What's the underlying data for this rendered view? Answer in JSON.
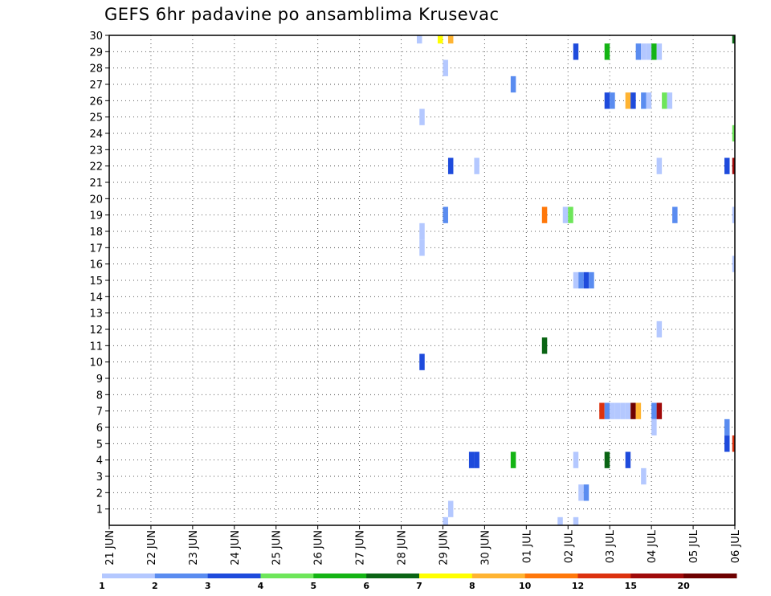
{
  "chart_data": {
    "type": "heatmap",
    "title": "GEFS 6hr padavine po ansamblima Krusevac",
    "x_tick_labels": [
      "21 JUN",
      "22 JUN",
      "23 JUN",
      "24 JUN",
      "25 JUN",
      "26 JUN",
      "27 JUN",
      "28 JUN",
      "29 JUN",
      "30 JUN",
      "01 JUL",
      "02 JUL",
      "03 JUL",
      "04 JUL",
      "05 JUL",
      "06 JUL"
    ],
    "y_tick_labels": [
      "1",
      "2",
      "3",
      "4",
      "5",
      "6",
      "7",
      "8",
      "9",
      "10",
      "11",
      "12",
      "13",
      "14",
      "15",
      "16",
      "17",
      "18",
      "19",
      "20",
      "21",
      "22",
      "23",
      "24",
      "25",
      "26",
      "27",
      "28",
      "29",
      "30"
    ],
    "ylim": [
      0,
      30
    ],
    "grid": "dotted",
    "legend_placement": "bottom",
    "legend_labels": [
      "1",
      "2",
      "3",
      "4",
      "5",
      "6",
      "7",
      "8",
      "10",
      "12",
      "15",
      "20"
    ],
    "colors": [
      "#b4c8ff",
      "#5a8cf0",
      "#1e4bdc",
      "#6ee65a",
      "#14b414",
      "#0a6414",
      "#ffff00",
      "#ffb432",
      "#ff780a",
      "#dc320f",
      "#a00a0a",
      "#6e0000"
    ],
    "cells": [
      {
        "member": 30,
        "t": 119,
        "c": 0
      },
      {
        "member": 30,
        "t": 127,
        "c": 6
      },
      {
        "member": 30,
        "t": 131,
        "c": 7
      },
      {
        "member": 30,
        "t": 240,
        "c": 5
      },
      {
        "member": 29,
        "t": 179,
        "c": 2
      },
      {
        "member": 29,
        "t": 191,
        "c": 4
      },
      {
        "member": 29,
        "t": 203,
        "c": 1
      },
      {
        "member": 29,
        "t": 205,
        "c": 0
      },
      {
        "member": 29,
        "t": 207,
        "c": 0
      },
      {
        "member": 29,
        "t": 209,
        "c": 4
      },
      {
        "member": 29,
        "t": 211,
        "c": 0
      },
      {
        "member": 28,
        "t": 129,
        "c": 0
      },
      {
        "member": 27,
        "t": 155,
        "c": 1
      },
      {
        "member": 26,
        "t": 191,
        "c": 2
      },
      {
        "member": 26,
        "t": 193,
        "c": 1
      },
      {
        "member": 26,
        "t": 199,
        "c": 7
      },
      {
        "member": 26,
        "t": 201,
        "c": 2
      },
      {
        "member": 26,
        "t": 205,
        "c": 1
      },
      {
        "member": 26,
        "t": 207,
        "c": 0
      },
      {
        "member": 26,
        "t": 213,
        "c": 3
      },
      {
        "member": 26,
        "t": 215,
        "c": 0
      },
      {
        "member": 25,
        "t": 120,
        "c": 0
      },
      {
        "member": 24,
        "t": 240,
        "c": 3
      },
      {
        "member": 22,
        "t": 131,
        "c": 2
      },
      {
        "member": 22,
        "t": 141,
        "c": 0
      },
      {
        "member": 22,
        "t": 211,
        "c": 0
      },
      {
        "member": 22,
        "t": 237,
        "c": 2
      },
      {
        "member": 22,
        "t": 240,
        "c": 10
      },
      {
        "member": 19,
        "t": 129,
        "c": 1
      },
      {
        "member": 19,
        "t": 167,
        "c": 8
      },
      {
        "member": 19,
        "t": 175,
        "c": 0
      },
      {
        "member": 19,
        "t": 177,
        "c": 3
      },
      {
        "member": 19,
        "t": 217,
        "c": 1
      },
      {
        "member": 19,
        "t": 240,
        "c": 0
      },
      {
        "member": 18,
        "t": 120,
        "c": 0
      },
      {
        "member": 17,
        "t": 120,
        "c": 0
      },
      {
        "member": 16,
        "t": 240,
        "c": 0
      },
      {
        "member": 15,
        "t": 179,
        "c": 0
      },
      {
        "member": 15,
        "t": 181,
        "c": 1
      },
      {
        "member": 15,
        "t": 183,
        "c": 2
      },
      {
        "member": 15,
        "t": 185,
        "c": 1
      },
      {
        "member": 12,
        "t": 211,
        "c": 0
      },
      {
        "member": 11,
        "t": 167,
        "c": 5
      },
      {
        "member": 10,
        "t": 120,
        "c": 2
      },
      {
        "member": 7,
        "t": 189,
        "c": 9
      },
      {
        "member": 7,
        "t": 191,
        "c": 1
      },
      {
        "member": 7,
        "t": 193,
        "c": 0
      },
      {
        "member": 7,
        "t": 195,
        "c": 0
      },
      {
        "member": 7,
        "t": 197,
        "c": 0
      },
      {
        "member": 7,
        "t": 199,
        "c": 0
      },
      {
        "member": 7,
        "t": 201,
        "c": 11
      },
      {
        "member": 7,
        "t": 203,
        "c": 7
      },
      {
        "member": 7,
        "t": 209,
        "c": 1
      },
      {
        "member": 7,
        "t": 211,
        "c": 10
      },
      {
        "member": 6,
        "t": 209,
        "c": 0
      },
      {
        "member": 6,
        "t": 237,
        "c": 1
      },
      {
        "member": 5,
        "t": 237,
        "c": 2
      },
      {
        "member": 5,
        "t": 240,
        "c": 9
      },
      {
        "member": 4,
        "t": 139,
        "c": 2
      },
      {
        "member": 4,
        "t": 141,
        "c": 2
      },
      {
        "member": 4,
        "t": 155,
        "c": 4
      },
      {
        "member": 4,
        "t": 179,
        "c": 0
      },
      {
        "member": 4,
        "t": 191,
        "c": 5
      },
      {
        "member": 4,
        "t": 199,
        "c": 2
      },
      {
        "member": 3,
        "t": 205,
        "c": 0
      },
      {
        "member": 2,
        "t": 181,
        "c": 0
      },
      {
        "member": 2,
        "t": 183,
        "c": 1
      },
      {
        "member": 1,
        "t": 131,
        "c": 0
      },
      {
        "member": 0,
        "t": 129,
        "c": 0
      },
      {
        "member": 0,
        "t": 173,
        "c": 0
      },
      {
        "member": 0,
        "t": 179,
        "c": 0
      }
    ]
  }
}
